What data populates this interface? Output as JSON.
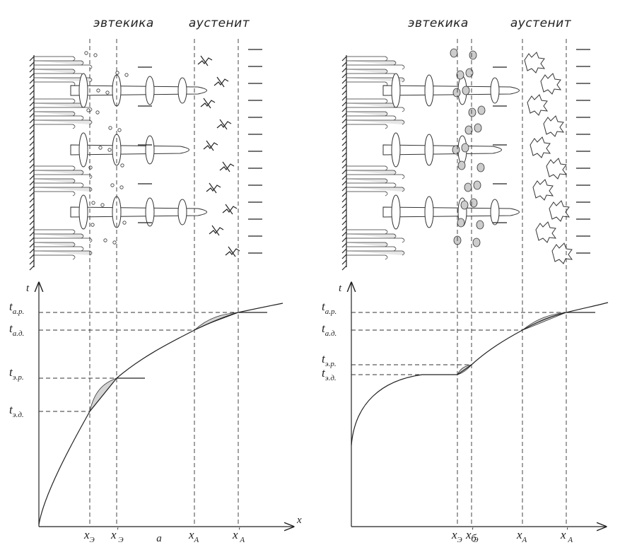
{
  "panels": [
    {
      "caption": "а",
      "phase_labels": [
        "эвтекика",
        "аустенит"
      ],
      "y_axis": "t",
      "x_axis": "x",
      "t_labels": [
        {
          "symbol": "t",
          "sub": "а.р."
        },
        {
          "symbol": "t",
          "sub": "а.д."
        },
        {
          "symbol": "t",
          "sub": "э.р."
        },
        {
          "symbol": "t",
          "sub": "э.д."
        }
      ],
      "x_labels": [
        {
          "symbol": "x",
          "sub": "Э"
        },
        {
          "symbol": "x",
          "sub": "Э",
          "sup": "'"
        },
        {
          "symbol": "x",
          "sub": "A"
        },
        {
          "symbol": "x",
          "sub": "A",
          "sup": "'"
        }
      ]
    },
    {
      "caption": "б",
      "phase_labels": [
        "эвтекика",
        "аустенит"
      ],
      "y_axis": "t",
      "t_labels": [
        {
          "symbol": "t",
          "sub": "а.р."
        },
        {
          "symbol": "t",
          "sub": "а.д."
        },
        {
          "symbol": "t",
          "sub": "э.р."
        },
        {
          "symbol": "t",
          "sub": "э.д."
        }
      ],
      "x_labels": [
        {
          "symbol": "x",
          "sub": "Э"
        },
        {
          "symbol": "x",
          "sub": "Э",
          "sup": "'"
        },
        {
          "symbol": "x",
          "sub": "A"
        },
        {
          "symbol": "x",
          "sub": "A",
          "sup": "'"
        }
      ]
    }
  ]
}
